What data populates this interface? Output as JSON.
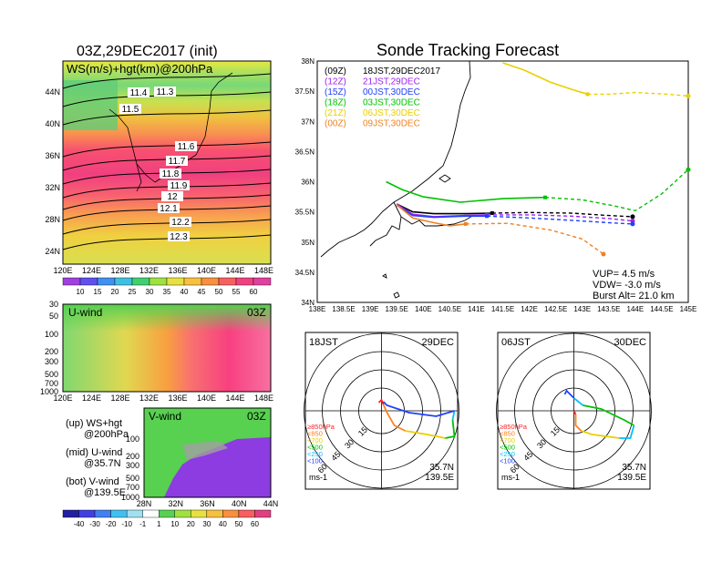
{
  "left": {
    "title": "03Z,29DEC2017 (init)",
    "map_label": "WS(m/s)+hgt(km)@200hPa",
    "lat_ticks": [
      "44N",
      "40N",
      "36N",
      "32N",
      "28N",
      "24N"
    ],
    "lon_ticks": [
      "120E",
      "124E",
      "128E",
      "132E",
      "136E",
      "140E",
      "144E",
      "148E"
    ],
    "contours": [
      "11.4",
      "11.3",
      "11.5",
      "11.6",
      "11.7",
      "11.8",
      "11.9",
      "12",
      "12.1",
      "12.2",
      "12.3"
    ],
    "ws_levels": [
      "10",
      "15",
      "20",
      "25",
      "30",
      "35",
      "40",
      "45",
      "50",
      "55",
      "60"
    ],
    "uwind": {
      "label": "U-wind",
      "time": "03Z",
      "levels": [
        "30",
        "50",
        "100",
        "200",
        "300",
        "500",
        "700",
        "1000"
      ],
      "lon_ticks": [
        "120E",
        "124E",
        "128E",
        "132E",
        "136E",
        "140E",
        "144E",
        "148E"
      ]
    },
    "vwind": {
      "label": "V-wind",
      "time": "03Z",
      "levels": [
        "100",
        "200",
        "300",
        "500",
        "700",
        "1000"
      ],
      "lat_ticks": [
        "28N",
        "32N",
        "36N",
        "40N",
        "44N"
      ]
    },
    "legend_notes": [
      {
        "a": "(up) WS+hgt",
        "b": "@200hPa"
      },
      {
        "a": "(mid) U-wind",
        "b": "@35.7N"
      },
      {
        "a": "(bot) V-wind",
        "b": "@139.5E"
      }
    ],
    "vw_levels": [
      "-40",
      "-30",
      "-20",
      "-10",
      "-1",
      "1",
      "10",
      "20",
      "30",
      "40",
      "50",
      "60"
    ]
  },
  "right": {
    "title": "Sonde Tracking Forecast",
    "lat_ticks": [
      "38N",
      "37.5N",
      "37N",
      "36.5N",
      "36N",
      "35.5N",
      "35N",
      "34.5N",
      "34N"
    ],
    "lon_ticks": [
      "138E",
      "138.5E",
      "139E",
      "139.5E",
      "140E",
      "140.5E",
      "141E",
      "141.5E",
      "142E",
      "142.5E",
      "143E",
      "143.5E",
      "144E",
      "144.5E",
      "145E"
    ],
    "legend": [
      {
        "code": "(09Z)",
        "time": "18JST,29DEC2017",
        "color": "#000000"
      },
      {
        "code": "(12Z)",
        "time": "21JST,29DEC",
        "color": "#a020f0"
      },
      {
        "code": "(15Z)",
        "time": "00JST,30DEC",
        "color": "#2040ff"
      },
      {
        "code": "(18Z)",
        "time": "03JST,30DEC",
        "color": "#00c000"
      },
      {
        "code": "(21Z)",
        "time": "06JST,30DEC",
        "color": "#e8d000"
      },
      {
        "code": "(00Z)",
        "time": "09JST,30DEC",
        "color": "#f08020"
      }
    ],
    "params": {
      "vup": "VUP= 4.5 m/s",
      "vdw": "VDW= -3.0 m/s",
      "burst": "Burst Alt= 21.0 km"
    }
  },
  "hodo1": {
    "time": "18JST",
    "date": "29DEC",
    "loc1": "35.7N",
    "loc2": "139.5E",
    "unit": "ms-1"
  },
  "hodo2": {
    "time": "06JST",
    "date": "30DEC",
    "loc1": "35.7N",
    "loc2": "139.5E",
    "unit": "ms-1"
  },
  "hodo_rings": [
    "15",
    "30",
    "45",
    "60"
  ],
  "hodo_legend": [
    {
      "text": "≥850hPa",
      "color": "#ff2020"
    },
    {
      "text": "<850",
      "color": "#ff8020"
    },
    {
      "text": "<700",
      "color": "#e8d000"
    },
    {
      "text": "<500",
      "color": "#00c000"
    },
    {
      "text": "<250",
      "color": "#00c0ff"
    },
    {
      "text": "<100",
      "color": "#2040ff"
    }
  ],
  "chart_data": [
    {
      "type": "line",
      "title": "Sonde Tracking Forecast",
      "xlim": [
        138,
        145
      ],
      "ylim": [
        34,
        38
      ],
      "series": [
        {
          "name": "(09Z) 18JST,29DEC2017",
          "x": [
            139.5,
            139.8,
            140.2,
            140.8,
            141.3,
            142.0,
            142.8,
            143.5,
            143.95
          ],
          "y": [
            35.63,
            35.5,
            35.47,
            35.47,
            35.48,
            35.49,
            35.48,
            35.44,
            35.42
          ]
        },
        {
          "name": "(12Z) 21JST,29DEC",
          "x": [
            139.5,
            139.8,
            140.2,
            140.8,
            141.2,
            142.0,
            142.8,
            143.5,
            143.95
          ],
          "y": [
            35.63,
            35.46,
            35.42,
            35.44,
            35.45,
            35.45,
            35.43,
            35.39,
            35.35
          ]
        },
        {
          "name": "(15Z) 00JST,30DEC",
          "x": [
            139.5,
            139.8,
            140.2,
            140.8,
            141.2,
            142.0,
            142.8,
            143.5,
            143.95
          ],
          "y": [
            35.61,
            35.44,
            35.41,
            35.43,
            35.43,
            35.4,
            35.36,
            35.32,
            35.3
          ]
        },
        {
          "name": "(18Z) 03JST,30DEC",
          "x": [
            139.3,
            139.6,
            140.0,
            140.7,
            141.5,
            142.3,
            143.0,
            143.6,
            144.0,
            144.5,
            145.0
          ],
          "y": [
            36.0,
            35.87,
            35.75,
            35.66,
            35.72,
            35.74,
            35.7,
            35.6,
            35.52,
            35.8,
            36.2
          ]
        },
        {
          "name": "(21Z) 06JST,30DEC",
          "x": [
            141.5,
            141.9,
            142.4,
            142.8,
            143.1,
            143.5,
            144.0,
            144.6,
            145.0
          ],
          "y": [
            37.97,
            37.85,
            37.65,
            37.53,
            37.45,
            37.45,
            37.48,
            37.45,
            37.42
          ]
        },
        {
          "name": "(00Z) 09JST,30DEC",
          "x": [
            139.5,
            139.8,
            140.2,
            140.5,
            140.8,
            141.6,
            142.4,
            143.0,
            143.4
          ],
          "y": [
            35.62,
            35.4,
            35.32,
            35.27,
            35.3,
            35.31,
            35.2,
            35.05,
            34.8
          ]
        }
      ]
    }
  ]
}
